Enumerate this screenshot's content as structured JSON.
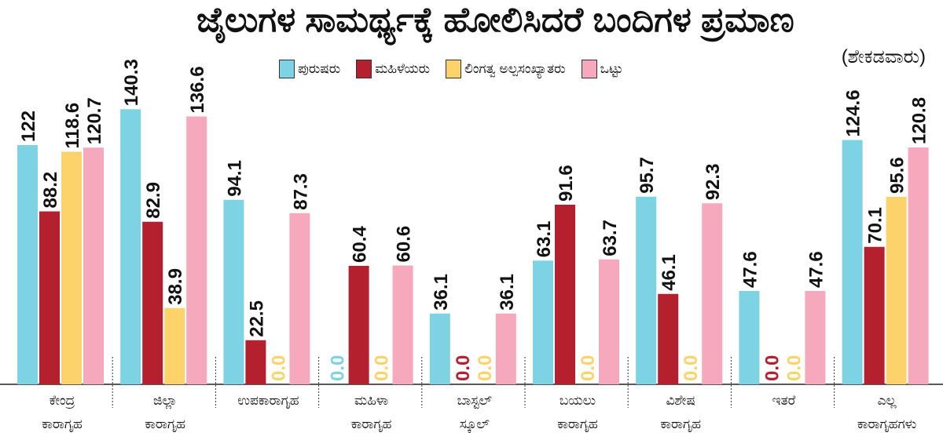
{
  "chart_data": {
    "type": "bar",
    "title": "ಜೈಲುಗಳ ಸಾಮರ್ಥ್ಯಕ್ಕೆ ಹೋಲಿಸಿದರೆ ಬಂದಿಗಳ ಪ್ರಮಾಣ",
    "subtitle": "(ಶೇಕಡವಾರು)",
    "categories": [
      [
        "ಕೇಂದ್ರ",
        "ಕಾರಾಗೃಹ"
      ],
      [
        "ಜಿಲ್ಲಾ",
        "ಕಾರಾಗೃಹ"
      ],
      [
        "ಉಪಕಾರಾಗೃಹ",
        ""
      ],
      [
        "ಮಹಿಳಾ",
        "ಕಾರಾಗೃಹ"
      ],
      [
        "ಬಾಸ್ಟಲ್",
        "ಸ್ಕೂಲ್"
      ],
      [
        "ಬಯಲು",
        "ಕಾರಾಗೃಹ"
      ],
      [
        "ವಿಶೇಷ",
        "ಕಾರಾಗೃಹ"
      ],
      [
        "ಇತರೆ",
        ""
      ],
      [
        "ಎಲ್ಲ",
        "ಕಾರಾಗೃಹಗಳು"
      ]
    ],
    "series": [
      {
        "name": "ಪುರುಷರು",
        "color": "#7dd3e3",
        "values": [
          122,
          140.3,
          94.1,
          0.0,
          36.1,
          63.1,
          95.7,
          47.6,
          124.6
        ]
      },
      {
        "name": "ಮಹಿಳೆಯರು",
        "color": "#b5202e",
        "values": [
          88.2,
          82.9,
          22.5,
          60.4,
          0.0,
          91.6,
          46.1,
          0.0,
          70.1
        ]
      },
      {
        "name": "ಲಿಂಗತ್ವ ಅಲ್ಪಸಂಖ್ಯಾತರು",
        "color": "#fcd36a",
        "values": [
          118.6,
          38.9,
          0.0,
          0.0,
          0.0,
          0.0,
          0.0,
          0.0,
          95.6
        ]
      },
      {
        "name": "ಒಟ್ಟು",
        "color": "#f6a9bd",
        "values": [
          120.7,
          136.6,
          87.3,
          60.6,
          36.1,
          63.7,
          92.3,
          47.6,
          120.8
        ]
      }
    ],
    "labels": [
      [
        "122",
        "88.2",
        "118.6",
        "120.7"
      ],
      [
        "140.3",
        "82.9",
        "38.9",
        "136.6"
      ],
      [
        "94.1",
        "22.5",
        "0.0",
        "87.3"
      ],
      [
        "0.0",
        "60.4",
        "0.0",
        "60.6"
      ],
      [
        "36.1",
        "0.0",
        "0.0",
        "36.1"
      ],
      [
        "63.1",
        "91.6",
        "0.0",
        "63.7"
      ],
      [
        "95.7",
        "46.1",
        "0.0",
        "92.3"
      ],
      [
        "47.6",
        "0.0",
        "0.0",
        "47.6"
      ],
      [
        "124.6",
        "70.1",
        "95.6",
        "120.8"
      ]
    ],
    "ylim": [
      0,
      140.3
    ],
    "legend": "top",
    "grid": false
  }
}
